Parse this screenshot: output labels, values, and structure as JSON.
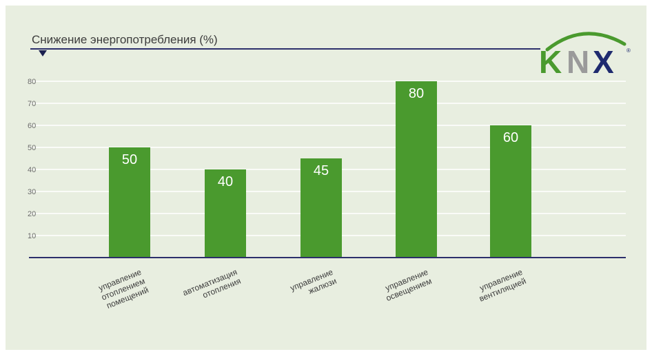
{
  "chart_data": {
    "type": "bar",
    "title": "Снижение энергопотребления (%)",
    "xlabel": "",
    "ylabel": "",
    "ylim": [
      0,
      80
    ],
    "yticks": [
      10,
      20,
      30,
      40,
      50,
      60,
      70,
      80
    ],
    "grid": true,
    "categories": [
      "управление отоплением помещений",
      "автоматизация отопления",
      "управление жалюзи",
      "управление освещением",
      "управление вентиляцией"
    ],
    "category_lines": [
      [
        "управление",
        "отоплением",
        "помещений"
      ],
      [
        "автоматизация",
        "отопления"
      ],
      [
        "управление",
        "жалюзи"
      ],
      [
        "управление",
        "освещением"
      ],
      [
        "управление",
        "вентиляцией"
      ]
    ],
    "values": [
      50,
      40,
      45,
      80,
      60
    ],
    "value_labels": [
      "50",
      "40",
      "45",
      "80",
      "60"
    ]
  },
  "logo": {
    "text_k": "K",
    "text_n": "N",
    "text_x": "X",
    "registered": "®"
  },
  "colors": {
    "background": "#e8eee0",
    "bar": "#4a9a2e",
    "axis": "#2c2f6b",
    "grid": "#ffffff",
    "logo_green": "#4a9a2e",
    "logo_grey": "#9a9a9a",
    "logo_navy": "#1e2a6e"
  }
}
